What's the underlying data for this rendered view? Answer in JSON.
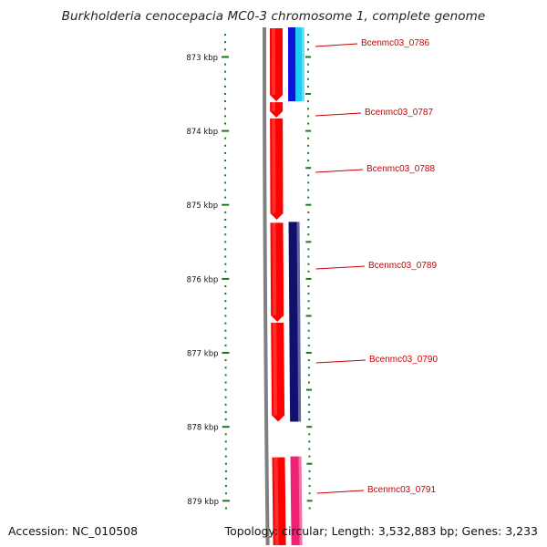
{
  "title": "Burkholderia cenocepacia MC0-3 chromosome 1, complete genome",
  "footer": {
    "accession": "Accession: NC_010508",
    "summary": "Topology: circular; Length: 3,532,883 bp; Genes: 3,233"
  },
  "axis": {
    "unit": "kbp",
    "labels": [
      "873 kbp",
      "874 kbp",
      "875 kbp",
      "876 kbp",
      "877 kbp",
      "878 kbp",
      "879 kbp"
    ],
    "label_values_kbp": [
      873,
      874,
      875,
      876,
      877,
      878,
      879
    ],
    "view_start_kbp": 872.6,
    "view_end_kbp": 879.6,
    "tick_color": "#1a7a1a"
  },
  "genes": [
    {
      "label": "Bcenmc03_0786",
      "start_kbp": 872.5,
      "end_kbp": 873.6,
      "strand": "+"
    },
    {
      "label": "Bcenmc03_0787",
      "start_kbp": 873.6,
      "end_kbp": 873.82,
      "strand": "+"
    },
    {
      "label": "Bcenmc03_0788",
      "start_kbp": 873.82,
      "end_kbp": 875.2,
      "strand": "+"
    },
    {
      "label": "Bcenmc03_0789",
      "start_kbp": 875.23,
      "end_kbp": 876.58,
      "strand": "+"
    },
    {
      "label": "Bcenmc03_0790",
      "start_kbp": 876.58,
      "end_kbp": 877.93,
      "strand": "+"
    },
    {
      "label": "Bcenmc03_0791",
      "start_kbp": 878.4,
      "end_kbp": 879.7,
      "strand": "+"
    }
  ],
  "feature_tracks": [
    {
      "start_kbp": 872.5,
      "end_kbp": 873.6,
      "color": "#1111dd",
      "track": 1
    },
    {
      "start_kbp": 872.5,
      "end_kbp": 873.6,
      "color": "#22ccee",
      "track": 2
    },
    {
      "start_kbp": 875.23,
      "end_kbp": 877.93,
      "color": "#10106e",
      "track": 1
    },
    {
      "start_kbp": 878.4,
      "end_kbp": 879.7,
      "color": "#ee2277",
      "track": 1
    }
  ],
  "colors": {
    "cds": "#ff0000",
    "backbone": "#808080",
    "label_text": "#cc0000",
    "label_line": "#cc0000"
  }
}
